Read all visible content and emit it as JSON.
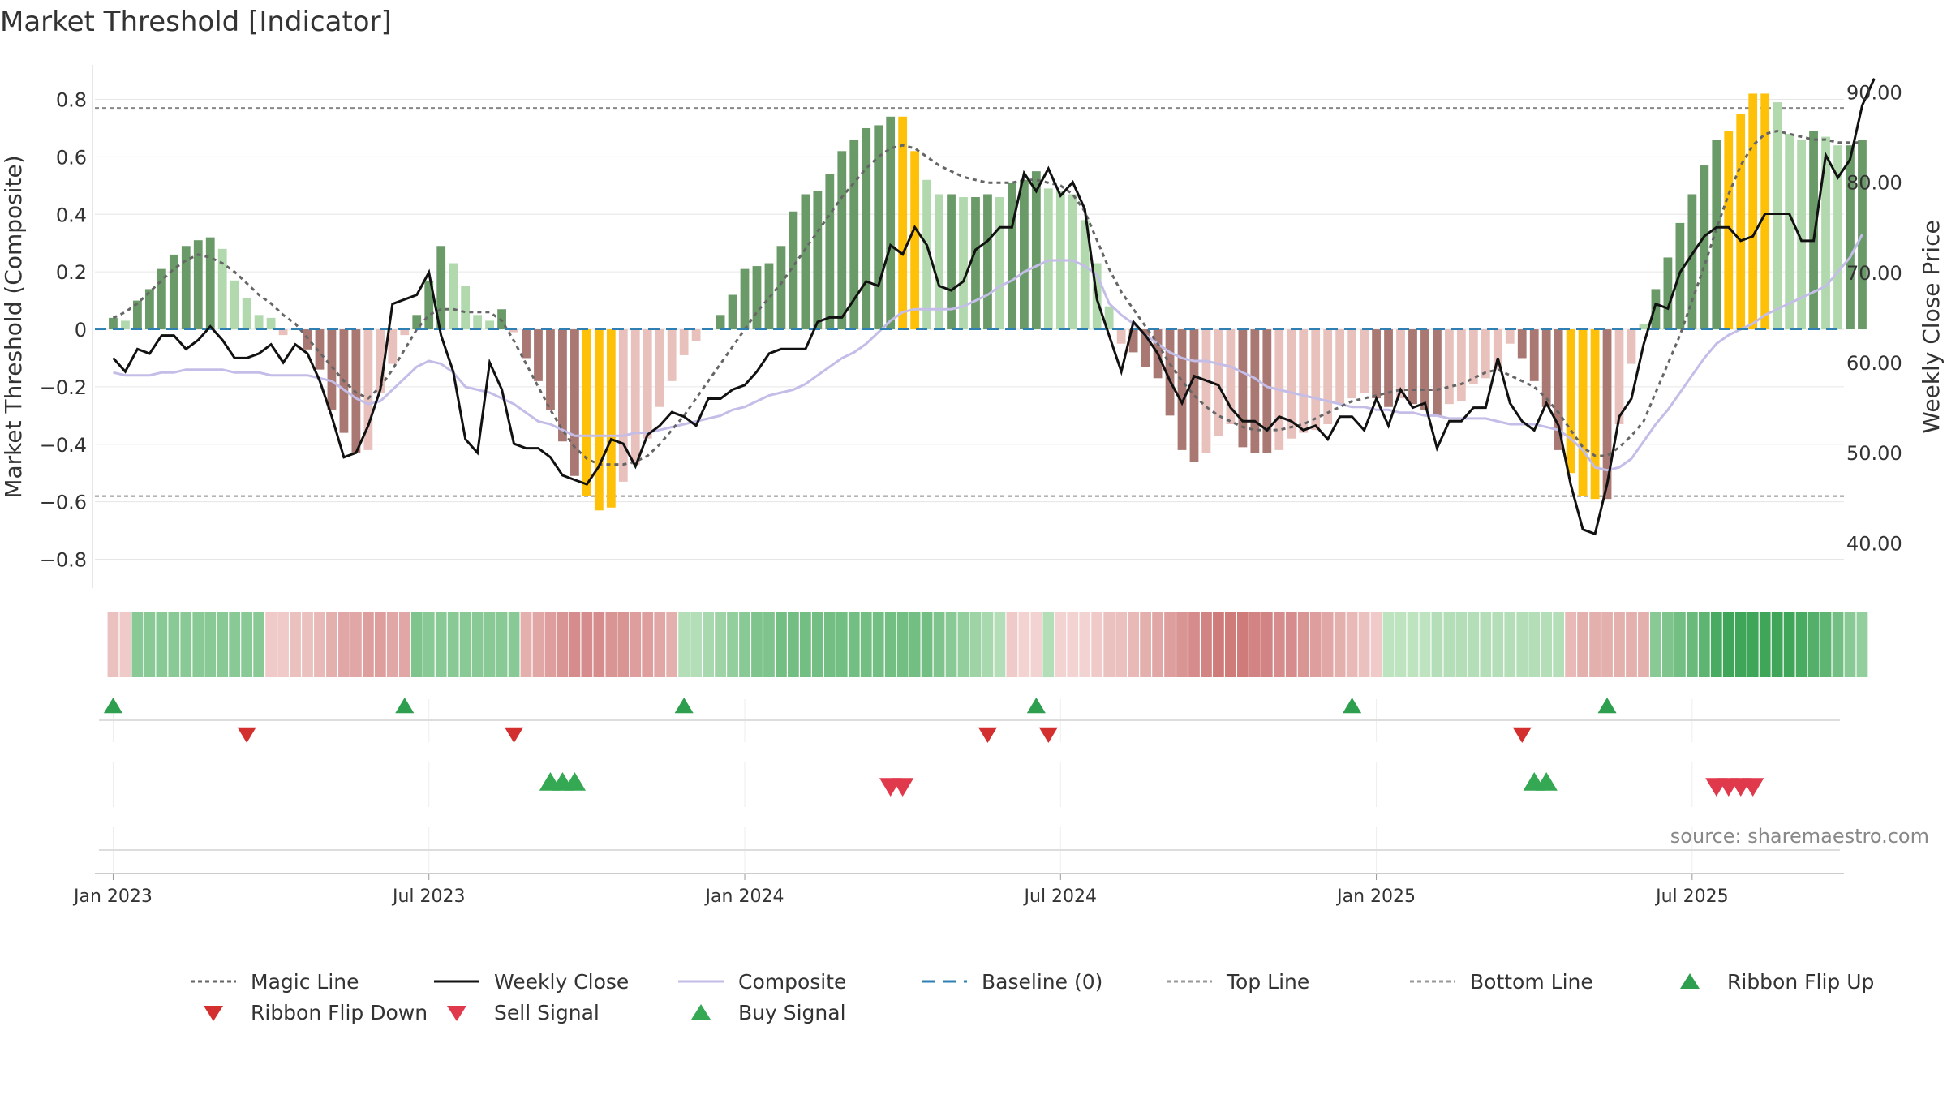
{
  "chart_data": {
    "type": "bar",
    "title": "Market Threshold [Indicator]",
    "ylabel_left": "Market Threshold (Composite)",
    "ylabel_right": "Weekly Close Price",
    "source": "source: sharemaestro.com",
    "ylim_left": [
      -0.9,
      0.92
    ],
    "ylim_right": [
      35,
      93
    ],
    "left_ticks": [
      -0.8,
      -0.6,
      -0.4,
      -0.2,
      0,
      0.2,
      0.4,
      0.6,
      0.8
    ],
    "left_tick_labels": [
      "−0.8",
      "−0.6",
      "−0.4",
      "−0.2",
      "0",
      "0.2",
      "0.4",
      "0.6",
      "0.8"
    ],
    "right_ticks": [
      40,
      50,
      60,
      70,
      80,
      90
    ],
    "right_tick_labels": [
      "40.00",
      "50.00",
      "60.00",
      "70.00",
      "80.00",
      "90.00"
    ],
    "x_tick_labels": [
      "Jan 2023",
      "Jul 2023",
      "Jan 2024",
      "Jul 2024",
      "Jan 2025",
      "Jul 2025"
    ],
    "x_tick_weeks": [
      0,
      26,
      52,
      78,
      104,
      130
    ],
    "x_range_weeks": [
      -1.5,
      142.5
    ],
    "top_line": 0.77,
    "bottom_line": -0.58,
    "histogram": [
      0.04,
      0.03,
      0.1,
      0.14,
      0.21,
      0.26,
      0.29,
      0.31,
      0.32,
      0.28,
      0.17,
      0.11,
      0.05,
      0.04,
      -0.02,
      0,
      -0.07,
      -0.14,
      -0.28,
      -0.36,
      -0.43,
      -0.42,
      -0.22,
      -0.12,
      -0.02,
      0.05,
      0.17,
      0.29,
      0.23,
      0.15,
      0.05,
      0.03,
      0.07,
      -0.01,
      -0.1,
      -0.18,
      -0.28,
      -0.39,
      -0.51,
      -0.58,
      -0.63,
      -0.62,
      -0.53,
      -0.47,
      -0.38,
      -0.27,
      -0.18,
      -0.09,
      -0.04,
      0,
      0.05,
      0.12,
      0.21,
      0.22,
      0.23,
      0.29,
      0.41,
      0.47,
      0.48,
      0.54,
      0.62,
      0.66,
      0.7,
      0.71,
      0.74,
      0.74,
      0.62,
      0.52,
      0.47,
      0.47,
      0.46,
      0.46,
      0.47,
      0.46,
      0.51,
      0.52,
      0.55,
      0.49,
      0.48,
      0.47,
      0.38,
      0.23,
      0.08,
      -0.05,
      -0.08,
      -0.13,
      -0.17,
      -0.3,
      -0.42,
      -0.46,
      -0.43,
      -0.37,
      -0.33,
      -0.41,
      -0.43,
      -0.43,
      -0.42,
      -0.38,
      -0.36,
      -0.35,
      -0.33,
      -0.26,
      -0.24,
      -0.22,
      -0.24,
      -0.27,
      -0.24,
      -0.26,
      -0.28,
      -0.3,
      -0.26,
      -0.25,
      -0.19,
      -0.17,
      -0.14,
      -0.05,
      -0.1,
      -0.18,
      -0.27,
      -0.42,
      -0.5,
      -0.58,
      -0.59,
      -0.59,
      -0.33,
      -0.12,
      0.02,
      0.14,
      0.25,
      0.37,
      0.47,
      0.57,
      0.66,
      0.69,
      0.75,
      0.82,
      0.82,
      0.79,
      0.68,
      0.66,
      0.69,
      0.67,
      0.64,
      0.64,
      0.66
    ],
    "highlight_weeks": [
      39,
      40,
      41,
      65,
      66,
      120,
      121,
      122,
      133,
      134,
      135,
      136
    ],
    "series": [
      {
        "name": "Magic Line",
        "axis": "left",
        "values": [
          0.04,
          0.06,
          0.09,
          0.13,
          0.17,
          0.21,
          0.24,
          0.26,
          0.25,
          0.23,
          0.2,
          0.16,
          0.12,
          0.09,
          0.05,
          0.02,
          -0.03,
          -0.08,
          -0.13,
          -0.18,
          -0.22,
          -0.24,
          -0.2,
          -0.14,
          -0.07,
          0,
          0.05,
          0.07,
          0.07,
          0.06,
          0.06,
          0.06,
          0.03,
          -0.04,
          -0.12,
          -0.2,
          -0.28,
          -0.35,
          -0.41,
          -0.45,
          -0.47,
          -0.47,
          -0.47,
          -0.46,
          -0.44,
          -0.4,
          -0.35,
          -0.3,
          -0.24,
          -0.18,
          -0.12,
          -0.06,
          0,
          0.06,
          0.11,
          0.16,
          0.22,
          0.28,
          0.34,
          0.4,
          0.46,
          0.51,
          0.56,
          0.6,
          0.63,
          0.64,
          0.63,
          0.6,
          0.57,
          0.55,
          0.53,
          0.52,
          0.51,
          0.51,
          0.51,
          0.52,
          0.52,
          0.51,
          0.5,
          0.47,
          0.41,
          0.31,
          0.21,
          0.13,
          0.07,
          0.01,
          -0.05,
          -0.12,
          -0.18,
          -0.23,
          -0.27,
          -0.3,
          -0.32,
          -0.34,
          -0.35,
          -0.35,
          -0.35,
          -0.34,
          -0.33,
          -0.31,
          -0.29,
          -0.27,
          -0.25,
          -0.24,
          -0.23,
          -0.22,
          -0.21,
          -0.21,
          -0.21,
          -0.21,
          -0.2,
          -0.19,
          -0.17,
          -0.15,
          -0.14,
          -0.16,
          -0.18,
          -0.2,
          -0.24,
          -0.29,
          -0.35,
          -0.41,
          -0.44,
          -0.44,
          -0.41,
          -0.37,
          -0.32,
          -0.22,
          -0.12,
          -0.02,
          0.1,
          0.22,
          0.35,
          0.47,
          0.57,
          0.64,
          0.68,
          0.69,
          0.68,
          0.67,
          0.66,
          0.66,
          0.65,
          0.65,
          0.65
        ]
      },
      {
        "name": "Weekly Close",
        "axis": "right",
        "values": [
          60.5,
          59,
          61.5,
          61,
          63,
          63,
          61.5,
          62.5,
          64,
          62.5,
          60.5,
          60.5,
          61,
          62,
          60,
          62,
          61,
          58,
          54,
          49.5,
          50,
          53,
          57,
          66.5,
          67,
          67.5,
          70,
          63,
          59,
          51.5,
          50,
          60,
          57,
          51,
          50.5,
          50.5,
          49.5,
          47.5,
          47,
          46.5,
          48.5,
          51.5,
          51,
          48.5,
          52,
          53,
          54.5,
          54,
          53,
          56,
          56,
          57,
          57.5,
          59,
          61,
          61.5,
          61.5,
          61.5,
          64.5,
          65,
          65,
          67,
          69,
          68.5,
          73,
          72,
          75,
          73,
          68.5,
          68,
          69,
          72.5,
          73.5,
          75,
          75,
          81,
          79,
          81.5,
          78.5,
          80,
          77,
          67,
          63,
          59,
          64.5,
          63,
          61,
          58,
          55.5,
          58.5,
          58,
          57.5,
          55,
          53.5,
          53.5,
          52.5,
          54,
          53.5,
          52.5,
          53,
          51.5,
          54,
          54,
          52.5,
          56,
          53,
          57,
          55,
          55.5,
          50.5,
          53.5,
          53.5,
          55,
          55,
          60.5,
          55.5,
          53.5,
          52.5,
          55.5,
          53,
          46.5,
          41.5,
          41,
          46.5,
          54,
          56,
          62,
          66.5,
          66,
          70,
          72,
          74,
          75,
          75,
          73.5,
          74,
          76.5,
          76.5,
          76.5,
          73.5,
          73.5,
          83,
          80.5,
          82.5,
          88.5,
          91.5
        ]
      },
      {
        "name": "Composite",
        "axis": "left",
        "values": [
          -0.15,
          -0.16,
          -0.16,
          -0.16,
          -0.15,
          -0.15,
          -0.14,
          -0.14,
          -0.14,
          -0.14,
          -0.15,
          -0.15,
          -0.15,
          -0.16,
          -0.16,
          -0.16,
          -0.16,
          -0.17,
          -0.18,
          -0.21,
          -0.24,
          -0.26,
          -0.25,
          -0.21,
          -0.17,
          -0.13,
          -0.11,
          -0.12,
          -0.15,
          -0.2,
          -0.21,
          -0.22,
          -0.24,
          -0.26,
          -0.29,
          -0.32,
          -0.33,
          -0.35,
          -0.37,
          -0.37,
          -0.37,
          -0.37,
          -0.37,
          -0.36,
          -0.36,
          -0.35,
          -0.34,
          -0.33,
          -0.32,
          -0.31,
          -0.3,
          -0.28,
          -0.27,
          -0.25,
          -0.23,
          -0.22,
          -0.21,
          -0.19,
          -0.16,
          -0.13,
          -0.1,
          -0.08,
          -0.05,
          -0.01,
          0.03,
          0.06,
          0.07,
          0.07,
          0.07,
          0.07,
          0.08,
          0.1,
          0.12,
          0.15,
          0.17,
          0.2,
          0.22,
          0.24,
          0.24,
          0.24,
          0.22,
          0.19,
          0.09,
          0.05,
          0.02,
          -0.02,
          -0.05,
          -0.08,
          -0.1,
          -0.11,
          -0.11,
          -0.12,
          -0.13,
          -0.15,
          -0.17,
          -0.2,
          -0.21,
          -0.22,
          -0.23,
          -0.24,
          -0.25,
          -0.26,
          -0.27,
          -0.27,
          -0.28,
          -0.28,
          -0.29,
          -0.29,
          -0.3,
          -0.3,
          -0.31,
          -0.31,
          -0.31,
          -0.31,
          -0.32,
          -0.33,
          -0.33,
          -0.33,
          -0.34,
          -0.35,
          -0.38,
          -0.42,
          -0.48,
          -0.49,
          -0.48,
          -0.45,
          -0.39,
          -0.33,
          -0.28,
          -0.22,
          -0.16,
          -0.1,
          -0.05,
          -0.02,
          0,
          0.02,
          0.05,
          0.07,
          0.09,
          0.11,
          0.13,
          0.15,
          0.2,
          0.25,
          0.33
        ]
      },
      {
        "name": "Baseline (0)",
        "axis": "left",
        "constant": 0
      }
    ],
    "ribbon": [
      -0.35,
      -0.3,
      0.5,
      0.5,
      0.5,
      0.5,
      0.5,
      0.5,
      0.5,
      0.5,
      0.5,
      0.5,
      0.5,
      -0.3,
      -0.3,
      -0.35,
      -0.35,
      -0.4,
      -0.45,
      -0.5,
      -0.5,
      -0.55,
      -0.55,
      -0.5,
      -0.5,
      0.55,
      0.5,
      0.5,
      0.5,
      0.5,
      0.5,
      0.5,
      0.5,
      0.5,
      -0.45,
      -0.5,
      -0.55,
      -0.6,
      -0.65,
      -0.65,
      -0.65,
      -0.6,
      -0.6,
      -0.55,
      -0.55,
      -0.5,
      -0.45,
      0.3,
      0.3,
      0.35,
      0.4,
      0.45,
      0.5,
      0.55,
      0.55,
      0.6,
      0.6,
      0.6,
      0.6,
      0.6,
      0.6,
      0.6,
      0.6,
      0.6,
      0.6,
      0.6,
      0.6,
      0.6,
      0.55,
      0.5,
      0.45,
      0.4,
      0.35,
      0.3,
      -0.3,
      -0.25,
      -0.25,
      0.3,
      -0.25,
      -0.25,
      -0.25,
      -0.3,
      -0.35,
      -0.35,
      -0.4,
      -0.45,
      -0.5,
      -0.55,
      -0.6,
      -0.65,
      -0.7,
      -0.75,
      -0.75,
      -0.75,
      -0.7,
      -0.7,
      -0.65,
      -0.65,
      -0.6,
      -0.55,
      -0.5,
      -0.45,
      -0.4,
      -0.35,
      -0.3,
      0.25,
      0.25,
      0.25,
      0.25,
      0.3,
      0.3,
      0.3,
      0.3,
      0.3,
      0.3,
      0.3,
      0.3,
      0.3,
      0.3,
      0.3,
      -0.4,
      -0.45,
      -0.45,
      -0.45,
      -0.45,
      -0.45,
      -0.45,
      0.5,
      0.55,
      0.6,
      0.65,
      0.7,
      0.8,
      0.85,
      0.85,
      0.85,
      0.85,
      0.85,
      0.85,
      0.8,
      0.75,
      0.7,
      0.6,
      0.5,
      0.45
    ],
    "ribbon_flip_up": [
      0,
      24,
      47,
      76,
      102,
      123
    ],
    "ribbon_flip_down": [
      11,
      33,
      72,
      77,
      116
    ],
    "buy_signal": [
      36,
      37,
      38,
      117,
      118
    ],
    "sell_signal": [
      64,
      65,
      132,
      133,
      134,
      135
    ],
    "colors": {
      "bar_pos_dark": "#6a9a68",
      "bar_pos_light": "#b1d9ad",
      "bar_neg_dark": "#a97872",
      "bar_neg_light": "#e8c1bd",
      "bar_highlight": "#ffc107",
      "magic_line": "#666666",
      "weekly_close": "#111111",
      "composite": "#c3bde8",
      "baseline": "#2f7fb2",
      "ref_line": "#888888",
      "flip_up": "#2e9e4f",
      "flip_down": "#d32f2f",
      "sell": "#e0394c",
      "buy": "#34a853",
      "grid": "#e6e6e6",
      "text": "#333333",
      "source": "#888888"
    },
    "legend": [
      {
        "label": "Magic Line",
        "symbol": "dotted-line",
        "color": "#666666"
      },
      {
        "label": "Weekly Close",
        "symbol": "solid-line",
        "color": "#111111"
      },
      {
        "label": "Composite",
        "symbol": "solid-line",
        "color": "#c3bde8"
      },
      {
        "label": "Baseline (0)",
        "symbol": "dashed-line",
        "color": "#2f7fb2"
      },
      {
        "label": "Top Line",
        "symbol": "dotted-line",
        "color": "#999999"
      },
      {
        "label": "Bottom Line",
        "symbol": "dotted-line",
        "color": "#999999"
      },
      {
        "label": "Ribbon Flip Up",
        "symbol": "triangle-up",
        "color": "#2e9e4f"
      },
      {
        "label": "Ribbon Flip Down",
        "symbol": "triangle-down",
        "color": "#d32f2f"
      },
      {
        "label": "Sell Signal",
        "symbol": "triangle-down",
        "color": "#e0394c"
      },
      {
        "label": "Buy Signal",
        "symbol": "triangle-up",
        "color": "#34a853"
      }
    ]
  }
}
